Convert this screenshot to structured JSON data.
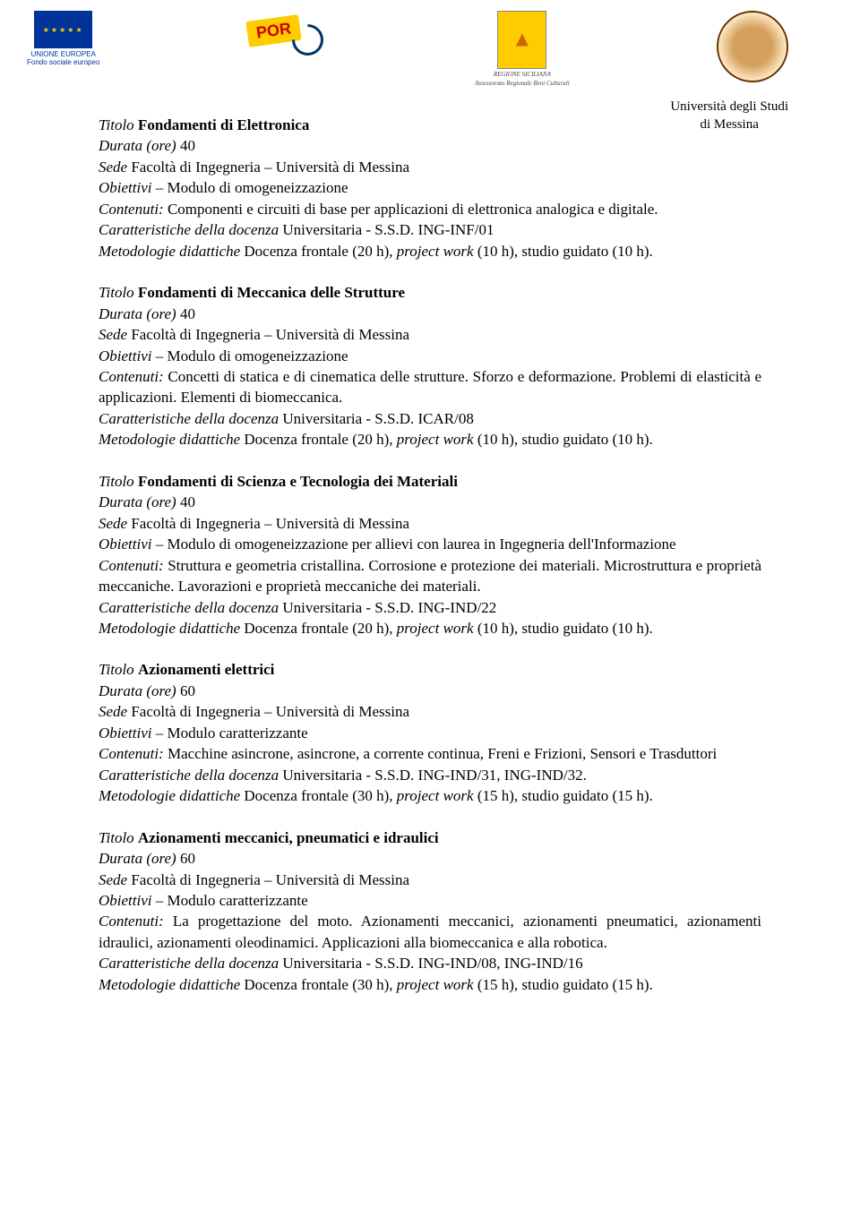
{
  "header": {
    "eu_line1": "UNIONE EUROPEA",
    "eu_line2": "Fondo sociale europeo",
    "por": "POR",
    "sicilia1": "REGIONE SICILIANA",
    "sicilia2": "Assessorato Regionale Beni Culturali",
    "unime1": "Università degli Studi",
    "unime2": "di Messina"
  },
  "labels": {
    "titolo": "Titolo",
    "durata": "Durata (ore)",
    "sede": "Sede",
    "obiettivi": "Obiettivi",
    "contenuti": "Contenuti:",
    "caratt": "Caratteristiche della docenza",
    "metod": "Metodologie didattiche"
  },
  "modules": [
    {
      "title": "Fondamenti di Elettronica",
      "durata": "40",
      "sede": "Facoltà di Ingegneria – Università di Messina",
      "obiettivi": "Modulo di omogeneizzazione",
      "contenuti": "Componenti e circuiti di base per applicazioni di elettronica analogica e digitale.",
      "caratt": "Universitaria - S.S.D. ING-INF/01",
      "metod": "Docenza frontale (20 h), project work (10 h), studio guidato (10 h).",
      "metod_italic_parts": [
        "project work"
      ]
    },
    {
      "title": "Fondamenti di Meccanica delle Strutture",
      "durata": "40",
      "sede": "Facoltà di Ingegneria – Università di Messina",
      "obiettivi": "Modulo di omogeneizzazione",
      "contenuti": "Concetti di statica e di cinematica delle strutture. Sforzo e deformazione. Problemi di elasticità e applicazioni. Elementi di biomeccanica.",
      "caratt": "Universitaria - S.S.D. ICAR/08",
      "metod": "Docenza frontale (20 h), project work (10 h), studio guidato (10 h)."
    },
    {
      "title": "Fondamenti di Scienza e Tecnologia dei Materiali",
      "durata": "40",
      "sede": "Facoltà di Ingegneria – Università di Messina",
      "obiettivi": "Modulo di omogeneizzazione per allievi con laurea in Ingegneria dell'Informazione",
      "contenuti": "Struttura e geometria cristallina. Corrosione e protezione dei materiali. Microstruttura e proprietà meccaniche. Lavorazioni e proprietà meccaniche dei materiali.",
      "caratt": "Universitaria - S.S.D. ING-IND/22",
      "metod": "Docenza frontale (20 h), project work (10 h), studio guidato (10 h)."
    },
    {
      "title": "Azionamenti elettrici",
      "durata": "60",
      "sede": "Facoltà di Ingegneria – Università di Messina",
      "obiettivi": "Modulo caratterizzante",
      "contenuti": "Macchine asincrone, asincrone, a corrente continua, Freni e Frizioni, Sensori e Trasduttori",
      "caratt": "Universitaria - S.S.D. ING-IND/31, ING-IND/32.",
      "metod": "Docenza frontale (30 h), project work (15 h), studio guidato (15 h)."
    },
    {
      "title": "Azionamenti meccanici, pneumatici e idraulici",
      "durata": "60",
      "sede": "Facoltà di Ingegneria – Università di Messina",
      "obiettivi": "Modulo caratterizzante",
      "contenuti": "La progettazione del moto. Azionamenti meccanici, azionamenti pneumatici, azionamenti idraulici, azionamenti oleodinamici. Applicazioni alla biomeccanica e alla robotica.",
      "caratt": "Universitaria - S.S.D. ING-IND/08, ING-IND/16",
      "metod": "Docenza frontale (30 h), project work (15 h), studio guidato (15 h)."
    }
  ]
}
